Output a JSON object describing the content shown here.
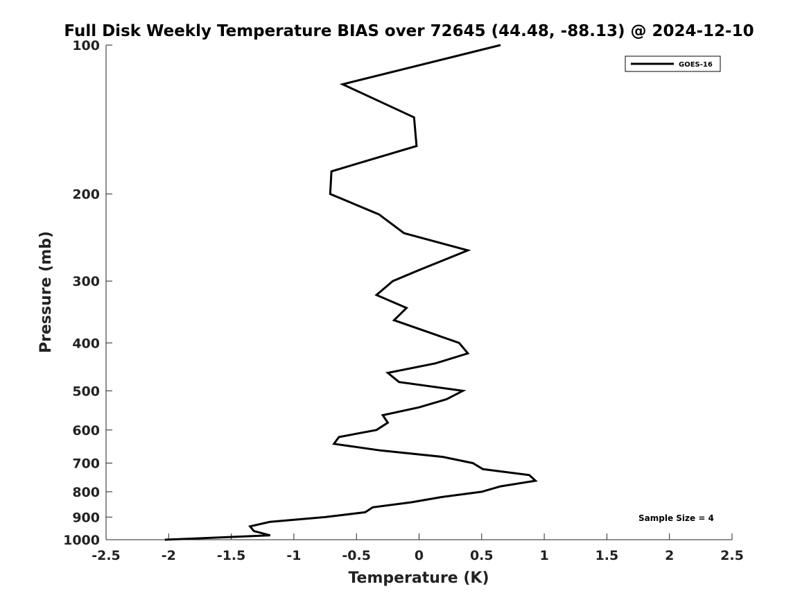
{
  "chart_data": {
    "type": "line",
    "title": "Full Disk Weekly Temperature BIAS over 72645 (44.48, -88.13) @ 2024-12-10",
    "xlabel": "Temperature (K)",
    "ylabel": "Pressure (mb)",
    "xlim": [
      -2.5,
      2.5
    ],
    "ylim": [
      100,
      1000
    ],
    "yscale": "log",
    "y_reversed": true,
    "grid": false,
    "xticks": [
      "-2.5",
      "-2",
      "-1.5",
      "-1",
      "-0.5",
      "0",
      "0.5",
      "1",
      "1.5",
      "2",
      "2.5"
    ],
    "xtick_values": [
      -2.5,
      -2,
      -1.5,
      -1,
      -0.5,
      0,
      0.5,
      1,
      1.5,
      2,
      2.5
    ],
    "yticks": [
      "100",
      "200",
      "300",
      "400",
      "500",
      "600",
      "700",
      "800",
      "900",
      "1000"
    ],
    "ytick_values": [
      100,
      200,
      300,
      400,
      500,
      600,
      700,
      800,
      900,
      1000
    ],
    "legend": {
      "placement": "top-right",
      "entries": [
        "GOES-16"
      ]
    },
    "annotation": "Sample Size = 4",
    "series": [
      {
        "name": "GOES-16",
        "color": "#000000",
        "pressure": [
          100,
          120,
          140,
          160,
          180,
          200,
          220,
          240,
          260,
          285,
          300,
          320,
          340,
          360,
          400,
          420,
          440,
          460,
          480,
          500,
          520,
          540,
          560,
          580,
          600,
          620,
          640,
          660,
          680,
          700,
          720,
          740,
          760,
          780,
          800,
          820,
          840,
          860,
          880,
          900,
          920,
          940,
          960,
          980,
          1000
        ],
        "temperature": [
          0.65,
          -0.61,
          -0.04,
          -0.02,
          -0.7,
          -0.71,
          -0.32,
          -0.12,
          0.39,
          0.0,
          -0.21,
          -0.34,
          -0.1,
          -0.2,
          0.32,
          0.39,
          0.13,
          -0.25,
          -0.16,
          0.35,
          0.22,
          0.0,
          -0.29,
          -0.25,
          -0.34,
          -0.64,
          -0.68,
          -0.31,
          0.19,
          0.43,
          0.51,
          0.88,
          0.93,
          0.65,
          0.5,
          0.18,
          -0.06,
          -0.37,
          -0.43,
          -0.75,
          -1.19,
          -1.35,
          -1.32,
          -1.19,
          -2.03
        ]
      }
    ]
  }
}
